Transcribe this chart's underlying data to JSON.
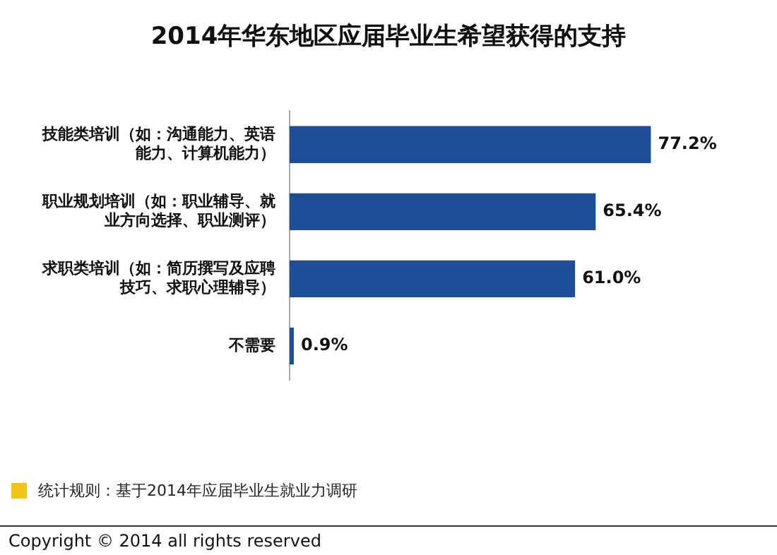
{
  "chart_data": {
    "type": "bar",
    "orientation": "horizontal",
    "title": "2014年华东地区应届毕业生希望获得的支持",
    "categories": [
      "技能类培训（如：沟通能力、英语能力、计算机能力）",
      "职业规划培训（如：职业辅导、就业方向选择、职业测评）",
      "求职类培训（如：简历撰写及应聘技巧、求职心理辅导）",
      "不需要"
    ],
    "values": [
      77.2,
      65.4,
      61.0,
      0.9
    ],
    "value_labels": [
      "77.2%",
      "65.4%",
      "61.0%",
      "0.9%"
    ],
    "color": "#1f4e99",
    "tick_labels": "y",
    "grid": false,
    "legend": false,
    "annotations": [
      "统计规则：基于2014年应届毕业生就业力调研",
      "Copyright © 2014 all rights reserved"
    ]
  }
}
